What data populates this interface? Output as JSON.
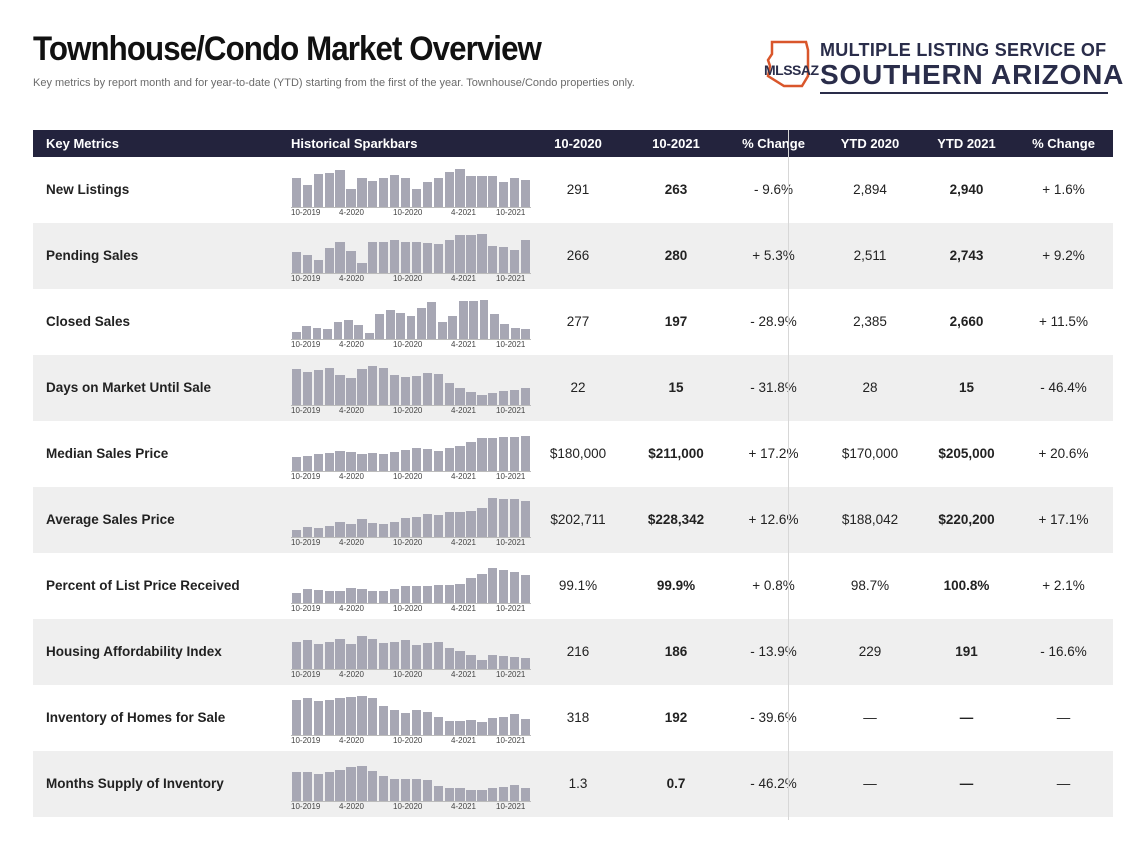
{
  "header": {
    "title": "Townhouse/Condo Market Overview",
    "subtitle": "Key metrics by report month and for year-to-date (YTD) starting from the first of the year. Townhouse/Condo properties only.",
    "logo_line1": "MULTIPLE LISTING SERVICE OF",
    "logo_line2": "SOUTHERN ARIZONA",
    "logo_abbr": "MLSSAZ"
  },
  "colors": {
    "header_bg": "#23233d",
    "bar": "#a7a7b4",
    "shade": "#efefef",
    "brand": "#2a2d4a",
    "logo_accent": "#d9562b"
  },
  "columns": [
    "Key Metrics",
    "Historical Sparkbars",
    "10-2020",
    "10-2021",
    "% Change",
    "YTD 2020",
    "YTD 2021",
    "% Change"
  ],
  "spark_labels": [
    "10-2019",
    "4-2020",
    "10-2020",
    "4-2021",
    "10-2021"
  ],
  "rows": [
    {
      "metric": "New Listings",
      "m2020": "291",
      "m2021": "263",
      "pct": "- 9.6%",
      "ytd2020": "2,894",
      "ytd2021": "2,940",
      "ytdpct": "+ 1.6%",
      "bars": [
        0.72,
        0.55,
        0.82,
        0.85,
        0.92,
        0.45,
        0.72,
        0.65,
        0.72,
        0.8,
        0.72,
        0.45,
        0.62,
        0.72,
        0.88,
        0.95,
        0.78,
        0.78,
        0.78,
        0.62,
        0.72,
        0.68
      ]
    },
    {
      "metric": "Pending Sales",
      "m2020": "266",
      "m2021": "280",
      "pct": "+ 5.3%",
      "ytd2020": "2,511",
      "ytd2021": "2,743",
      "ytdpct": "+ 9.2%",
      "bars": [
        0.52,
        0.45,
        0.32,
        0.62,
        0.78,
        0.55,
        0.25,
        0.78,
        0.78,
        0.82,
        0.78,
        0.78,
        0.75,
        0.72,
        0.82,
        0.95,
        0.95,
        0.98,
        0.68,
        0.65,
        0.58,
        0.82
      ]
    },
    {
      "metric": "Closed Sales",
      "m2020": "277",
      "m2021": "197",
      "pct": "- 28.9%",
      "ytd2020": "2,385",
      "ytd2021": "2,660",
      "ytdpct": "+ 11.5%",
      "bars": [
        0.18,
        0.32,
        0.28,
        0.25,
        0.42,
        0.48,
        0.35,
        0.15,
        0.62,
        0.72,
        0.65,
        0.58,
        0.78,
        0.92,
        0.42,
        0.58,
        0.95,
        0.95,
        0.98,
        0.62,
        0.38,
        0.28,
        0.25
      ]
    },
    {
      "metric": "Days on Market Until Sale",
      "m2020": "22",
      "m2021": "15",
      "pct": "- 31.8%",
      "ytd2020": "28",
      "ytd2021": "15",
      "ytdpct": "- 46.4%",
      "bars": [
        0.9,
        0.82,
        0.88,
        0.92,
        0.75,
        0.68,
        0.9,
        0.98,
        0.92,
        0.75,
        0.7,
        0.72,
        0.8,
        0.78,
        0.55,
        0.42,
        0.32,
        0.25,
        0.3,
        0.35,
        0.38,
        0.42
      ]
    },
    {
      "metric": "Median Sales Price",
      "m2020": "$180,000",
      "m2021": "$211,000",
      "pct": "+ 17.2%",
      "ytd2020": "$170,000",
      "ytd2021": "$205,000",
      "ytdpct": "+ 20.6%",
      "bars": [
        0.35,
        0.38,
        0.42,
        0.45,
        0.5,
        0.48,
        0.42,
        0.45,
        0.42,
        0.48,
        0.52,
        0.58,
        0.55,
        0.5,
        0.58,
        0.62,
        0.72,
        0.82,
        0.82,
        0.85,
        0.85,
        0.88
      ]
    },
    {
      "metric": "Average Sales Price",
      "m2020": "$202,711",
      "m2021": "$228,342",
      "pct": "+ 12.6%",
      "ytd2020": "$188,042",
      "ytd2021": "$220,200",
      "ytdpct": "+ 17.1%",
      "bars": [
        0.18,
        0.25,
        0.22,
        0.28,
        0.38,
        0.32,
        0.45,
        0.35,
        0.32,
        0.38,
        0.48,
        0.5,
        0.58,
        0.55,
        0.62,
        0.62,
        0.65,
        0.72,
        0.98,
        0.95,
        0.95,
        0.9
      ]
    },
    {
      "metric": "Percent of List Price Received",
      "m2020": "99.1%",
      "m2021": "99.9%",
      "pct": "+ 0.8%",
      "ytd2020": "98.7%",
      "ytd2021": "100.8%",
      "ytdpct": "+ 2.1%",
      "bars": [
        0.25,
        0.35,
        0.32,
        0.3,
        0.3,
        0.38,
        0.35,
        0.3,
        0.3,
        0.35,
        0.42,
        0.42,
        0.42,
        0.45,
        0.45,
        0.48,
        0.62,
        0.72,
        0.88,
        0.82,
        0.78,
        0.7
      ]
    },
    {
      "metric": "Housing Affordability Index",
      "m2020": "216",
      "m2021": "186",
      "pct": "- 13.9%",
      "ytd2020": "229",
      "ytd2021": "191",
      "ytdpct": "- 16.6%",
      "bars": [
        0.68,
        0.72,
        0.62,
        0.68,
        0.75,
        0.62,
        0.82,
        0.75,
        0.65,
        0.68,
        0.72,
        0.6,
        0.65,
        0.68,
        0.52,
        0.45,
        0.35,
        0.22,
        0.35,
        0.32,
        0.3,
        0.28
      ]
    },
    {
      "metric": "Inventory of Homes for Sale",
      "m2020": "318",
      "m2021": "192",
      "pct": "- 39.6%",
      "ytd2020": "—",
      "ytd2021": "—",
      "ytdpct": "—",
      "bars": [
        0.88,
        0.92,
        0.85,
        0.88,
        0.92,
        0.95,
        0.98,
        0.92,
        0.72,
        0.62,
        0.55,
        0.62,
        0.58,
        0.45,
        0.35,
        0.35,
        0.38,
        0.32,
        0.42,
        0.45,
        0.52,
        0.4
      ]
    },
    {
      "metric": "Months Supply of Inventory",
      "m2020": "1.3",
      "m2021": "0.7",
      "pct": "- 46.2%",
      "ytd2020": "—",
      "ytd2021": "—",
      "ytdpct": "—",
      "bars": [
        0.72,
        0.72,
        0.68,
        0.72,
        0.78,
        0.85,
        0.88,
        0.75,
        0.62,
        0.55,
        0.55,
        0.55,
        0.52,
        0.38,
        0.32,
        0.32,
        0.28,
        0.28,
        0.32,
        0.35,
        0.4,
        0.32
      ]
    }
  ]
}
